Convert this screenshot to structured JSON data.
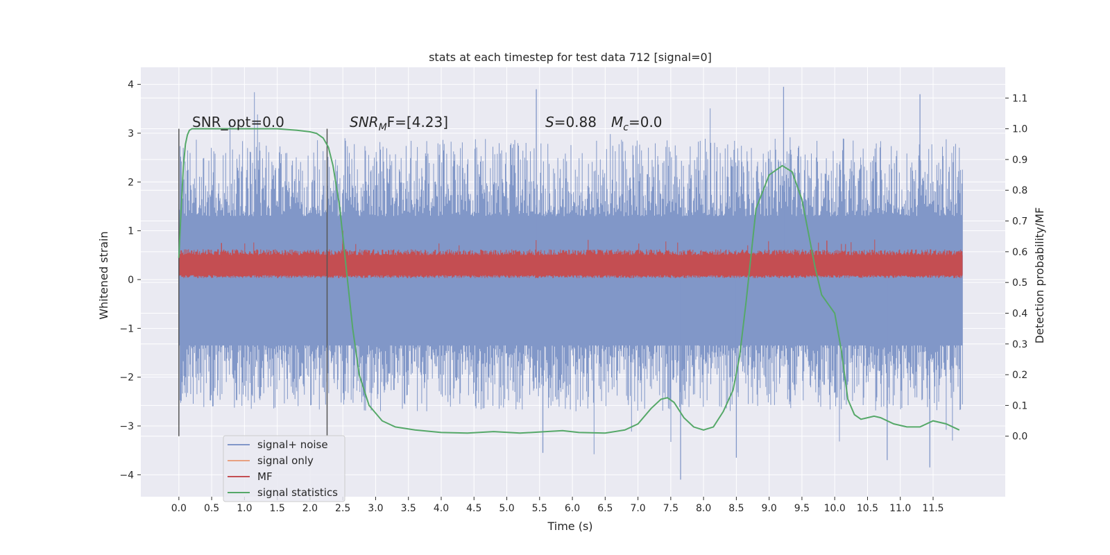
{
  "chart_data": {
    "type": "line",
    "title": "stats at each timestep for test data 712 [signal=0]",
    "xlabel": "Time (s)",
    "ylabel": "Whitened strain",
    "ylabel_right": "Detection probability/MF",
    "xlim": [
      -0.58,
      12.6
    ],
    "ylim": [
      -4.45,
      4.35
    ],
    "ylim_right": [
      -0.197,
      1.2
    ],
    "x_ticks": [
      "0.0",
      "0.5",
      "1.0",
      "1.5",
      "2.0",
      "2.5",
      "3.0",
      "3.5",
      "4.0",
      "4.5",
      "5.0",
      "5.5",
      "6.0",
      "6.5",
      "7.0",
      "7.5",
      "8.0",
      "8.5",
      "9.0",
      "9.5",
      "10.0",
      "10.5",
      "11.0",
      "11.5"
    ],
    "y_ticks": [
      "−4",
      "−3",
      "−2",
      "−1",
      "0",
      "1",
      "2",
      "3",
      "4"
    ],
    "y_ticks_right": [
      "0.0",
      "0.1",
      "0.2",
      "0.3",
      "0.4",
      "0.5",
      "0.6",
      "0.7",
      "0.8",
      "0.9",
      "1.0",
      "1.1"
    ],
    "grid": true,
    "annotations": {
      "snr_opt": "SNR_opt=0.0",
      "snr_mf_prefix": "SNR",
      "snr_mf_sub": "M",
      "snr_mf_rest": "F=[4.23]",
      "s_label": "S",
      "s_value": "=0.88",
      "mc_label": "M",
      "mc_sub": "c",
      "mc_value": "=0.0"
    },
    "vertical_lines_x": [
      0.0,
      2.26
    ],
    "legend": {
      "placement": "lower-left",
      "entries": [
        "signal+ noise",
        "signal only",
        "MF",
        "signal statistics"
      ]
    },
    "colors": {
      "signal_noise": "#8197c8",
      "signal_only": "#e8a080",
      "mf": "#c44e52",
      "signal_statistics": "#55a868",
      "axes_bg": "#eaeaf2",
      "grid": "#ffffff"
    },
    "series": [
      {
        "name": "signal+ noise",
        "axis": "left",
        "x_range": [
          0.0,
          11.95
        ],
        "envelope_typical": [
          -2.4,
          2.6
        ],
        "extremes": [
          {
            "x": 5.45,
            "y": 3.9
          },
          {
            "x": 9.22,
            "y": 3.95
          },
          {
            "x": 11.3,
            "y": 3.8
          },
          {
            "x": 7.65,
            "y": -4.1
          },
          {
            "x": 11.45,
            "y": -3.85
          },
          {
            "x": 5.55,
            "y": -3.55
          },
          {
            "x": 8.5,
            "y": -3.65
          },
          {
            "x": 10.8,
            "y": -3.7
          }
        ]
      },
      {
        "name": "MF",
        "axis": "left",
        "x_range": [
          0.0,
          11.95
        ],
        "band": [
          0.05,
          0.55
        ],
        "peaks": [
          {
            "x": 2.5,
            "y": 1.0
          },
          {
            "x": 0.65,
            "y": 0.75
          },
          {
            "x": 9.88,
            "y": 0.8
          }
        ]
      },
      {
        "name": "signal statistics",
        "axis": "right",
        "x": [
          0.0,
          0.03,
          0.07,
          0.1,
          0.13,
          0.16,
          0.2,
          0.3,
          0.5,
          1.0,
          1.5,
          1.8,
          2.0,
          2.1,
          2.2,
          2.28,
          2.35,
          2.45,
          2.55,
          2.65,
          2.75,
          2.9,
          3.1,
          3.3,
          3.6,
          4.0,
          4.4,
          4.8,
          5.2,
          5.6,
          5.85,
          6.1,
          6.5,
          6.8,
          7.0,
          7.2,
          7.35,
          7.45,
          7.55,
          7.7,
          7.85,
          8.0,
          8.15,
          8.3,
          8.45,
          8.55,
          8.65,
          8.8,
          9.0,
          9.2,
          9.35,
          9.5,
          9.6,
          9.7,
          9.8,
          9.9,
          10.0,
          10.1,
          10.2,
          10.3,
          10.4,
          10.5,
          10.6,
          10.7,
          10.9,
          11.1,
          11.3,
          11.5,
          11.7,
          11.9
        ],
        "y": [
          0.58,
          0.72,
          0.88,
          0.95,
          0.98,
          0.995,
          1.0,
          1.0,
          1.0,
          1.0,
          1.0,
          0.995,
          0.99,
          0.985,
          0.97,
          0.94,
          0.88,
          0.75,
          0.55,
          0.35,
          0.2,
          0.1,
          0.05,
          0.03,
          0.02,
          0.012,
          0.01,
          0.015,
          0.01,
          0.015,
          0.018,
          0.012,
          0.01,
          0.02,
          0.04,
          0.09,
          0.12,
          0.125,
          0.11,
          0.06,
          0.03,
          0.02,
          0.03,
          0.08,
          0.15,
          0.26,
          0.44,
          0.74,
          0.85,
          0.88,
          0.86,
          0.77,
          0.66,
          0.55,
          0.46,
          0.43,
          0.4,
          0.28,
          0.12,
          0.07,
          0.055,
          0.06,
          0.065,
          0.06,
          0.04,
          0.03,
          0.03,
          0.05,
          0.04,
          0.02
        ]
      }
    ]
  }
}
